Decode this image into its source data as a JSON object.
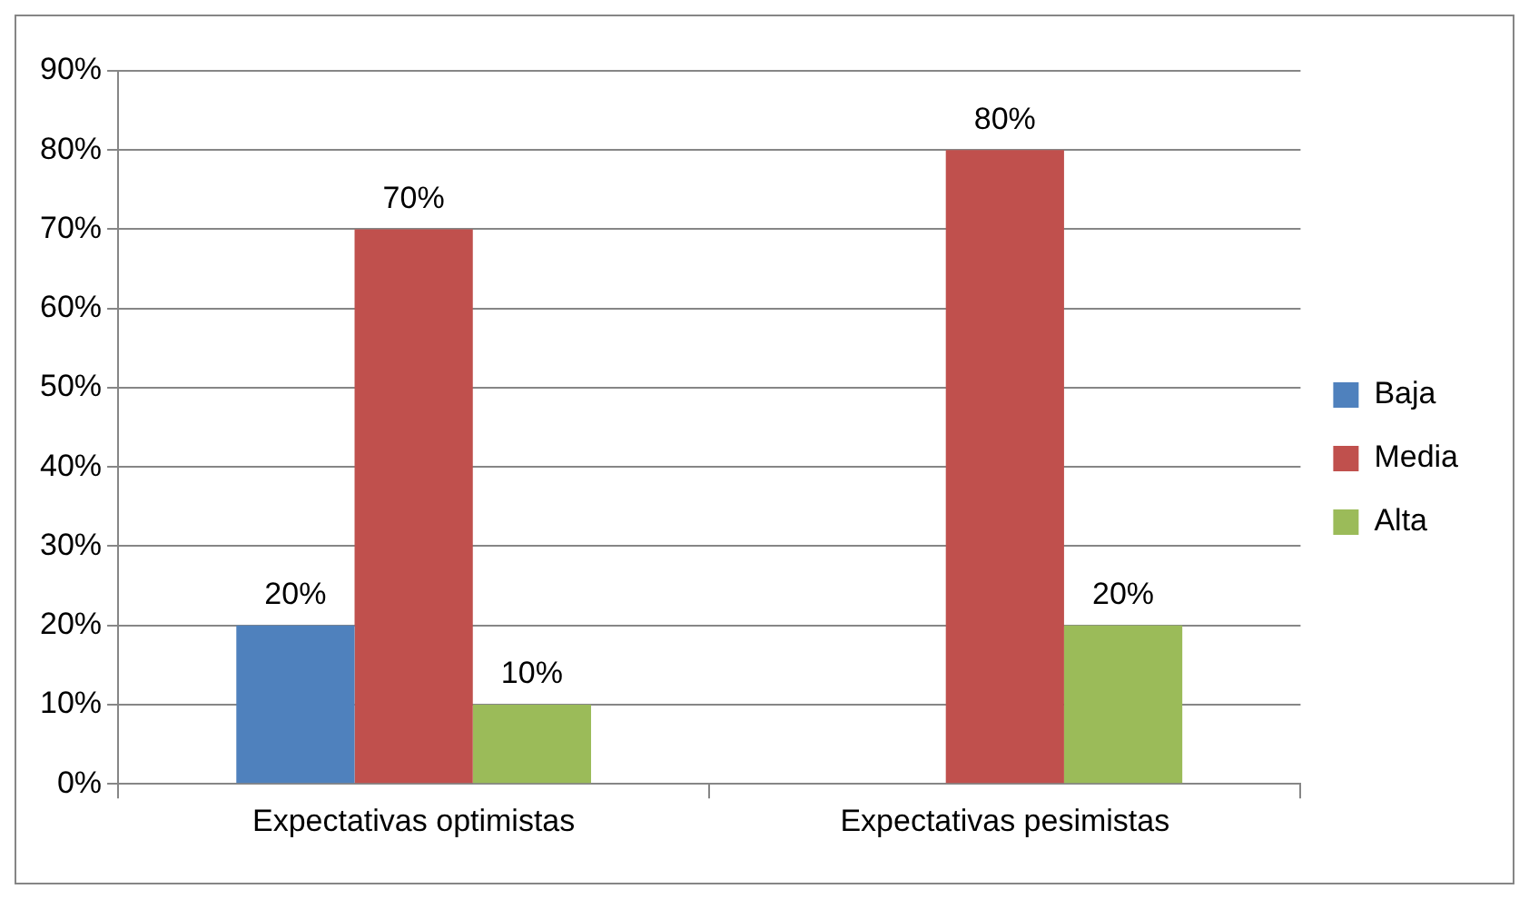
{
  "chart_data": {
    "type": "bar",
    "categories": [
      "Expectativas optimistas",
      "Expectativas pesimistas"
    ],
    "series": [
      {
        "name": "Baja",
        "color": "#4f81bd",
        "values": [
          20,
          null
        ],
        "value_labels": [
          "20%",
          null
        ]
      },
      {
        "name": "Media",
        "color": "#c0504d",
        "values": [
          70,
          80
        ],
        "value_labels": [
          "70%",
          "80%"
        ]
      },
      {
        "name": "Alta",
        "color": "#9bbb59",
        "values": [
          10,
          20
        ],
        "value_labels": [
          "10%",
          "20%"
        ]
      }
    ],
    "ylim": [
      0,
      90
    ],
    "yticks": [
      {
        "value": 0,
        "label": "0%"
      },
      {
        "value": 10,
        "label": "10%"
      },
      {
        "value": 20,
        "label": "20%"
      },
      {
        "value": 30,
        "label": "30%"
      },
      {
        "value": 40,
        "label": "40%"
      },
      {
        "value": 50,
        "label": "50%"
      },
      {
        "value": 60,
        "label": "60%"
      },
      {
        "value": 70,
        "label": "70%"
      },
      {
        "value": 80,
        "label": "80%"
      },
      {
        "value": 90,
        "label": "90%"
      }
    ],
    "grid": "y",
    "legend": "right"
  }
}
